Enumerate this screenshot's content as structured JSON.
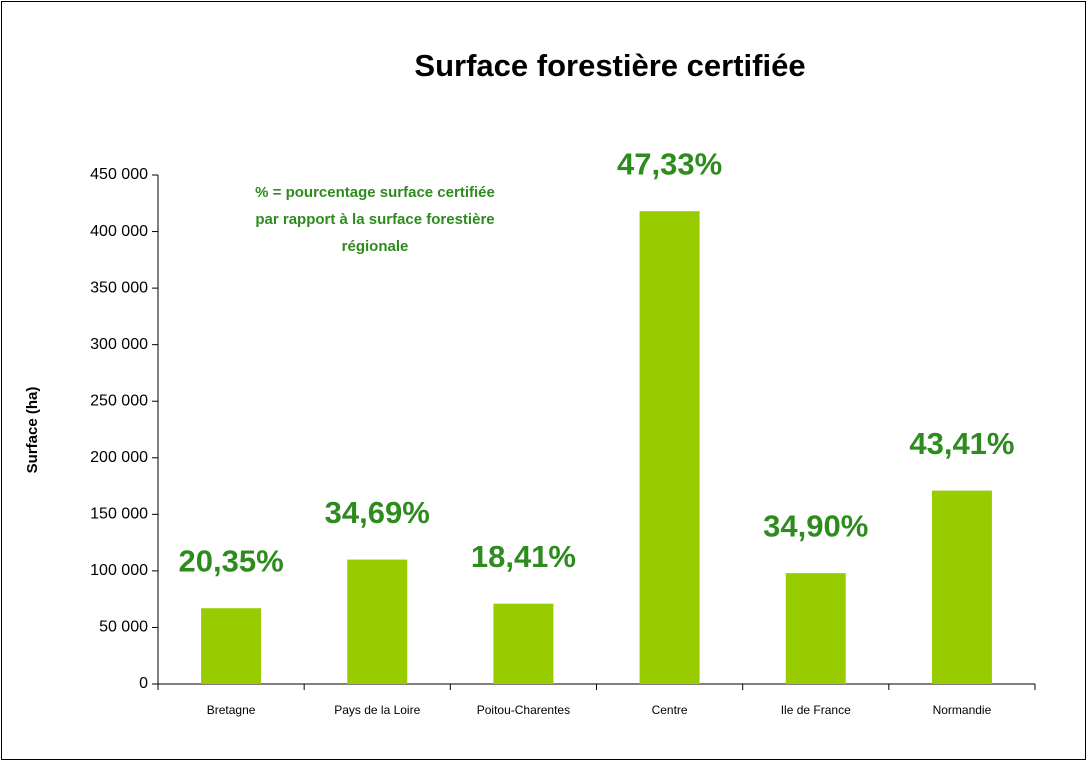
{
  "chart_data": {
    "type": "bar",
    "title": "Surface forestière certifiée",
    "ylabel": "Surface (ha)",
    "note": [
      "% = pourcentage surface certifiée",
      "par rapport à la surface forestière",
      "régionale"
    ],
    "categories": [
      "Bretagne",
      "Pays de la Loire",
      "Poitou-Charentes",
      "Centre",
      "Ile de France",
      "Normandie"
    ],
    "values": [
      67000,
      110000,
      71000,
      418000,
      98000,
      171000
    ],
    "annotations": [
      "20,35%",
      "34,69%",
      "18,41%",
      "47,33%",
      "34,90%",
      "43,41%"
    ],
    "color": "#99cc00",
    "annotation_color": "#2e8b1e",
    "ylim": [
      0,
      450000
    ],
    "yticks": [
      0,
      {
        "value": 50000,
        "label": "50 000"
      },
      {
        "value": 100000,
        "label": "100 000"
      },
      {
        "value": 150000,
        "label": "150 000"
      },
      {
        "value": 200000,
        "label": "200 000"
      },
      {
        "value": 250000,
        "label": "250 000"
      },
      {
        "value": 300000,
        "label": "300 000"
      },
      {
        "value": 350000,
        "label": "350 000"
      },
      {
        "value": 400000,
        "label": "400 000"
      },
      {
        "value": 450000,
        "label": "450 000"
      }
    ],
    "grid": false
  }
}
